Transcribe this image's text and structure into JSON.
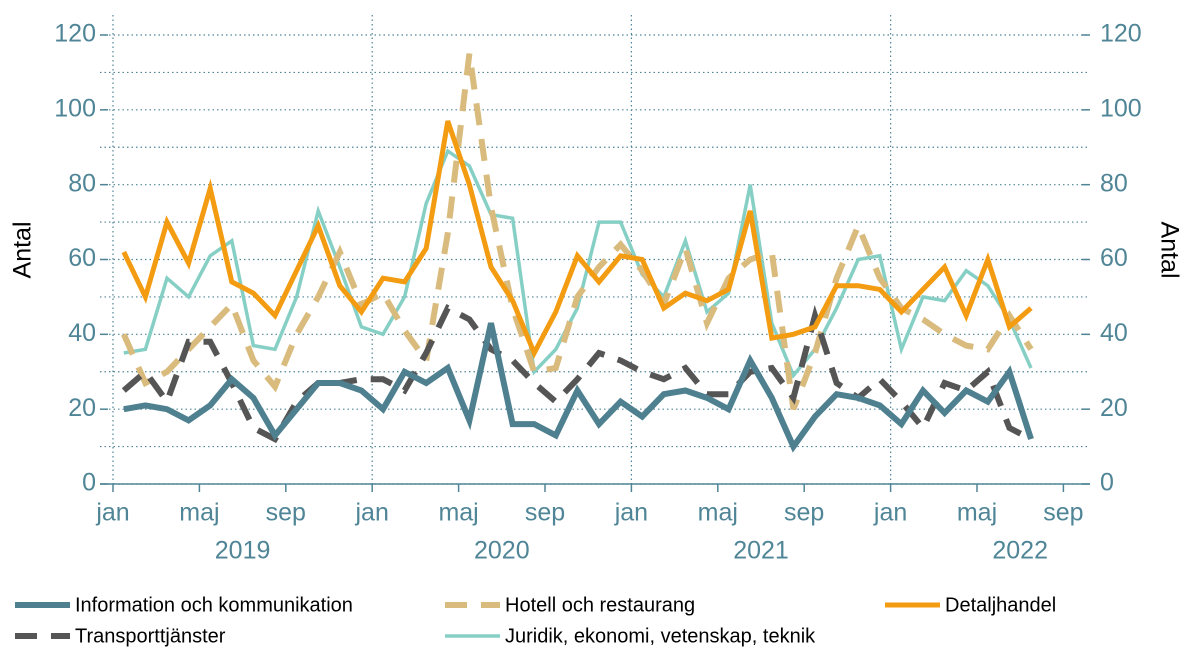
{
  "chart_data": {
    "type": "line",
    "y_label": "Antal",
    "y2_label": "Antal",
    "categories": [
      "jan",
      null,
      null,
      null,
      "maj",
      null,
      null,
      null,
      "sep",
      null,
      null,
      null,
      "jan",
      null,
      null,
      null,
      "maj",
      null,
      null,
      null,
      "sep",
      null,
      null,
      null,
      "jan",
      null,
      null,
      null,
      "maj",
      null,
      null,
      null,
      "sep",
      null,
      null,
      null,
      "jan",
      null,
      null,
      null,
      "maj",
      null,
      null,
      null,
      "sep"
    ],
    "year_labels": [
      "2019",
      "2020",
      "2021",
      "2022"
    ],
    "ylim": [
      0,
      120
    ],
    "yticks": [
      0,
      20,
      40,
      60,
      80,
      100,
      120
    ],
    "y2lim": [
      0,
      120
    ],
    "y2ticks": [
      0,
      20,
      40,
      60,
      80,
      100,
      120
    ],
    "grid": true,
    "series": [
      {
        "name": "Information och kommunikation",
        "color": "#4e8090",
        "dash": "solid",
        "values": [
          20,
          21,
          20,
          17,
          21,
          28,
          23,
          13,
          20,
          27,
          27,
          25,
          20,
          30,
          27,
          31,
          17,
          43,
          16,
          16,
          13,
          25,
          16,
          22,
          18,
          24,
          25,
          23,
          20,
          33,
          23,
          10,
          18,
          24,
          23,
          21,
          16,
          25,
          19,
          25,
          22,
          30,
          12,
          null,
          null
        ]
      },
      {
        "name": "Hotell och restaurang",
        "color": "#d9bb7e",
        "dash": "dashed",
        "values": [
          40,
          27,
          30,
          36,
          42,
          48,
          33,
          26,
          40,
          50,
          62,
          48,
          51,
          41,
          33,
          67,
          115,
          74,
          47,
          30,
          31,
          50,
          58,
          64,
          57,
          48,
          63,
          43,
          55,
          60,
          62,
          20,
          35,
          55,
          69,
          55,
          47,
          44,
          40,
          37,
          36,
          45,
          36,
          null,
          null
        ]
      },
      {
        "name": "Detaljhandel",
        "color": "#f39c12",
        "dash": "solid",
        "values": [
          62,
          50,
          70,
          59,
          79,
          54,
          51,
          45,
          57,
          69,
          53,
          46,
          55,
          54,
          63,
          97,
          80,
          58,
          49,
          35,
          46,
          61,
          54,
          61,
          60,
          47,
          51,
          49,
          52,
          73,
          39,
          40,
          42,
          53,
          53,
          52,
          46,
          52,
          58,
          45,
          60,
          42,
          47,
          null,
          null
        ]
      },
      {
        "name": "Transporttjänster",
        "color": "#555555",
        "dash": "dashed",
        "values": [
          25,
          30,
          22,
          38,
          38,
          27,
          15,
          12,
          22,
          27,
          27,
          28,
          28,
          25,
          35,
          47,
          44,
          36,
          33,
          27,
          22,
          28,
          35,
          33,
          30,
          28,
          31,
          24,
          24,
          30,
          31,
          23,
          45,
          27,
          23,
          28,
          22,
          15,
          27,
          25,
          30,
          15,
          12,
          null,
          null
        ]
      },
      {
        "name": "Juridik, ekonomi, vetenskap, teknik",
        "color": "#86cfc5",
        "dash": "solid",
        "values": [
          35,
          36,
          55,
          50,
          61,
          65,
          37,
          36,
          50,
          73,
          58,
          42,
          40,
          50,
          75,
          89,
          85,
          72,
          71,
          30,
          36,
          47,
          70,
          70,
          56,
          50,
          65,
          46,
          51,
          80,
          43,
          29,
          36,
          47,
          60,
          61,
          36,
          50,
          49,
          57,
          53,
          44,
          31,
          null,
          null
        ]
      }
    ]
  }
}
